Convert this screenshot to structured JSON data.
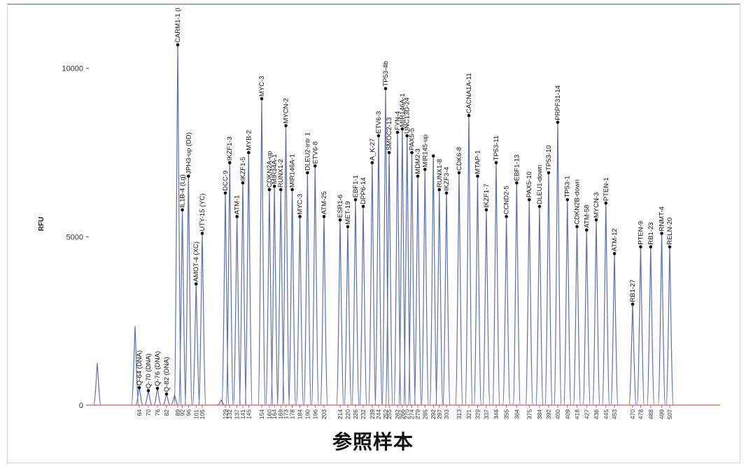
{
  "title": "参照样本",
  "chart_data": {
    "type": "line",
    "ylabel": "RFU",
    "ylim": [
      0,
      10700
    ],
    "yticks": [
      0,
      5000,
      10000
    ],
    "grid": false,
    "colors": {
      "trace": "#5a6fb0",
      "baseline": "#e05a4a",
      "marker": "#111111"
    },
    "unlabeled_peaks": [
      {
        "x": 44,
        "y": 1250
      },
      {
        "x": 59,
        "y": 2350
      },
      {
        "x": 87,
        "y": 300
      },
      {
        "x": 124,
        "y": 150
      }
    ],
    "peaks": [
      {
        "x": 64,
        "y": 520,
        "label": "Q-64 (DNA)"
      },
      {
        "x": 70,
        "y": 430,
        "label": "Q-70 (DNA)"
      },
      {
        "x": 76,
        "y": 500,
        "label": "Q-76 (DNA)"
      },
      {
        "x": 82,
        "y": 330,
        "label": "Q-82 (DNA)"
      },
      {
        "x": 89,
        "y": 10700,
        "label": "CARM1-1 (I"
      },
      {
        "x": 92,
        "y": 5800,
        "label": "IL1B-4 (Lg)"
      },
      {
        "x": 96,
        "y": 6800,
        "label": "JPH3-up (DD)"
      },
      {
        "x": 101,
        "y": 3600,
        "label": "AMOT-4 (XC)"
      },
      {
        "x": 105,
        "y": 5100,
        "label": "UTY-15 (YC)"
      },
      {
        "x": 129,
        "y": 6300,
        "label": "DCC-9"
      },
      {
        "x": 132,
        "y": 7200,
        "label": "IKZF1-3"
      },
      {
        "x": 137,
        "y": 5600,
        "label": "ATM-1"
      },
      {
        "x": 141,
        "y": 6600,
        "label": "IKZF1-5"
      },
      {
        "x": 145,
        "y": 7500,
        "label": "MYB-2"
      },
      {
        "x": 154,
        "y": 9100,
        "label": "MYC-3"
      },
      {
        "x": 160,
        "y": 6400,
        "label": "CDKN2A-up"
      },
      {
        "x": 164,
        "y": 6500,
        "label": "MIR34A-1"
      },
      {
        "x": 169,
        "y": 6400,
        "label": "RUNX1-2"
      },
      {
        "x": 173,
        "y": 8300,
        "label": "MYCN-2"
      },
      {
        "x": 178,
        "y": 6400,
        "label": "MIR146A-1"
      },
      {
        "x": 184,
        "y": 5600,
        "label": "MYC-3"
      },
      {
        "x": 190,
        "y": 6900,
        "label": "DLEU2-intr 1"
      },
      {
        "x": 196,
        "y": 7100,
        "label": "ETV6-8"
      },
      {
        "x": 203,
        "y": 5600,
        "label": "ATM-25"
      },
      {
        "x": 214,
        "y": 5500,
        "label": "ESR1-6"
      },
      {
        "x": 220,
        "y": 5300,
        "label": "MET-19"
      },
      {
        "x": 226,
        "y": 6100,
        "label": "EBF1-1"
      },
      {
        "x": 232,
        "y": 5900,
        "label": "DPP6-14"
      },
      {
        "x": 239,
        "y": 7200,
        "label": "A_K-27"
      },
      {
        "x": 244,
        "y": 8000,
        "label": "ETV6-3"
      },
      {
        "x": 252,
        "y": 9400,
        "label": "TP53-4b"
      },
      {
        "x": 255,
        "y": 7500,
        "label": "SMOC2-13"
      },
      {
        "x": 262,
        "y": 8100,
        "label": "FYN-4"
      },
      {
        "x": 266,
        "y": 8200,
        "label": "MIR146A-1"
      },
      {
        "x": 270,
        "y": 8000,
        "label": "UNC13D-24"
      },
      {
        "x": 274,
        "y": 7500,
        "label": "PAX5-5"
      },
      {
        "x": 279,
        "y": 6800,
        "label": "MDM2-3"
      },
      {
        "x": 285,
        "y": 7000,
        "label": "MIR145-up"
      },
      {
        "x": 292,
        "y": 7400,
        "label": ""
      },
      {
        "x": 297,
        "y": 6400,
        "label": "RUNX1-8"
      },
      {
        "x": 303,
        "y": 6300,
        "label": "IKZF3-4"
      },
      {
        "x": 313,
        "y": 6900,
        "label": "CDK6-8"
      },
      {
        "x": 321,
        "y": 8600,
        "label": "CACNA1A-11"
      },
      {
        "x": 329,
        "y": 6800,
        "label": "MTAP-1"
      },
      {
        "x": 337,
        "y": 5800,
        "label": "IKZF1-7"
      },
      {
        "x": 346,
        "y": 7200,
        "label": "TP53-11"
      },
      {
        "x": 355,
        "y": 5600,
        "label": "CCND2-5"
      },
      {
        "x": 364,
        "y": 6600,
        "label": "EBF1-13"
      },
      {
        "x": 375,
        "y": 6100,
        "label": "PAX5-10"
      },
      {
        "x": 384,
        "y": 5900,
        "label": "DLEU1-down"
      },
      {
        "x": 392,
        "y": 6900,
        "label": "TP53-10"
      },
      {
        "x": 400,
        "y": 8400,
        "label": "PRPF31-14"
      },
      {
        "x": 409,
        "y": 6100,
        "label": "TP53-1"
      },
      {
        "x": 418,
        "y": 5300,
        "label": "CDKN2B-down"
      },
      {
        "x": 427,
        "y": 5200,
        "label": "ATM-58"
      },
      {
        "x": 436,
        "y": 5500,
        "label": "MYCN-3"
      },
      {
        "x": 445,
        "y": 6000,
        "label": "PTEN-1"
      },
      {
        "x": 453,
        "y": 4500,
        "label": "ATM-12"
      },
      {
        "x": 470,
        "y": 3000,
        "label": "RB1-27"
      },
      {
        "x": 478,
        "y": 4700,
        "label": "PTEN-9"
      },
      {
        "x": 488,
        "y": 4700,
        "label": "RB1-23"
      },
      {
        "x": 499,
        "y": 5100,
        "label": "RNMT-4"
      },
      {
        "x": 507,
        "y": 4700,
        "label": "RELN-20"
      }
    ],
    "xticks": [
      "64",
      "70",
      "76",
      "82",
      "89",
      "92",
      "96",
      "101",
      "105",
      "129",
      "132",
      "137",
      "141",
      "145",
      "154",
      "160",
      "164",
      "169",
      "173",
      "178",
      "184",
      "190",
      "196",
      "203",
      "214",
      "220",
      "226",
      "232",
      "239",
      "244",
      "252",
      "255",
      "262",
      "266",
      "270",
      "274",
      "279",
      "285",
      "292",
      "297",
      "303",
      "313",
      "321",
      "329",
      "337",
      "346",
      "355",
      "364",
      "375",
      "384",
      "392",
      "400",
      "409",
      "418",
      "427",
      "436",
      "445",
      "453",
      "470",
      "478",
      "488",
      "499",
      "507"
    ]
  }
}
